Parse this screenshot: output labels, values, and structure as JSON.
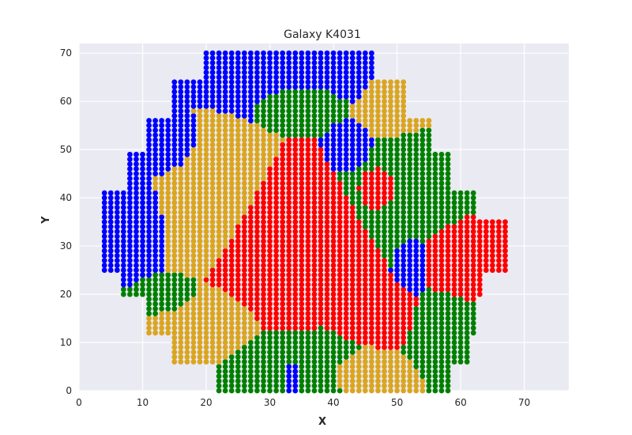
{
  "chart_data": {
    "type": "scatter",
    "title": "Galaxy K4031",
    "xlabel": "X",
    "ylabel": "Y",
    "xlim": [
      0,
      77
    ],
    "ylim": [
      0,
      72
    ],
    "xticks": [
      0,
      10,
      20,
      30,
      40,
      50,
      60,
      70
    ],
    "yticks": [
      0,
      10,
      20,
      30,
      40,
      50,
      60,
      70
    ],
    "grid": true,
    "background": "#eaeaf2",
    "class_colors": {
      "blue": "#0000ff",
      "green": "#008000",
      "gold": "#daa520",
      "red": "#ff0000"
    },
    "shape": {
      "description": "hexagonal grid of spaxels, one per integer (x,y) cell inside the galaxy outline",
      "row_extents": [
        {
          "y_min": 0,
          "y_max": 5,
          "x_min": 22,
          "x_max": 58
        },
        {
          "y_min": 6,
          "y_max": 11,
          "x_min": 15,
          "x_max": 61
        },
        {
          "y_min": 12,
          "y_max": 19,
          "x_min": 11,
          "x_max": 62
        },
        {
          "y_min": 20,
          "y_max": 24,
          "x_min": 7,
          "x_max": 63
        },
        {
          "y_min": 25,
          "y_max": 35,
          "x_min": 4,
          "x_max": 67
        },
        {
          "y_min": 36,
          "y_max": 41,
          "x_min": 4,
          "x_max": 62
        },
        {
          "y_min": 42,
          "y_max": 49,
          "x_min": 8,
          "x_max": 58
        },
        {
          "y_min": 50,
          "y_max": 56,
          "x_min": 11,
          "x_max": 55
        },
        {
          "y_min": 57,
          "y_max": 64,
          "x_min": 15,
          "x_max": 51
        },
        {
          "y_min": 65,
          "y_max": 70,
          "x_min": 20,
          "x_max": 46
        }
      ]
    },
    "series": [
      {
        "color": "blue",
        "regions": [
          {
            "x": [
              3,
              14
            ],
            "y": [
              22,
              44
            ]
          },
          {
            "x": [
              8,
              20
            ],
            "y": [
              44,
              58
            ]
          },
          {
            "x": [
              14,
              46
            ],
            "y": [
              58,
              71
            ]
          },
          {
            "x": [
              30,
              37
            ],
            "y": [
              0,
              10
            ]
          },
          {
            "x": [
              50,
              55
            ],
            "y": [
              20,
              32
            ]
          },
          {
            "x": [
              40,
              46
            ],
            "y": [
              46,
              55
            ]
          }
        ]
      },
      {
        "color": "green",
        "regions": [
          {
            "x": [
              44,
              62
            ],
            "y": [
              30,
              55
            ]
          },
          {
            "x": [
              22,
              50
            ],
            "y": [
              0,
              12
            ]
          },
          {
            "x": [
              7,
              20
            ],
            "y": [
              15,
              24
            ]
          },
          {
            "x": [
              50,
              62
            ],
            "y": [
              5,
              20
            ]
          },
          {
            "x": [
              26,
              42
            ],
            "y": [
              56,
              66
            ]
          }
        ]
      },
      {
        "color": "red",
        "regions": [
          {
            "x": [
              20,
              44
            ],
            "y": [
              14,
              42
            ]
          },
          {
            "x": [
              54,
              68
            ],
            "y": [
              20,
              36
            ]
          },
          {
            "x": [
              40,
              55
            ],
            "y": [
              8,
              22
            ]
          },
          {
            "x": [
              44,
              52
            ],
            "y": [
              36,
              48
            ]
          }
        ]
      },
      {
        "color": "gold",
        "regions": [
          {
            "x": [
              10,
              28
            ],
            "y": [
              5,
              22
            ]
          },
          {
            "x": [
              12,
              28
            ],
            "y": [
              24,
              56
            ]
          },
          {
            "x": [
              44,
              56
            ],
            "y": [
              52,
              66
            ]
          },
          {
            "x": [
              36,
              52
            ],
            "y": [
              0,
              10
            ]
          }
        ]
      }
    ]
  }
}
